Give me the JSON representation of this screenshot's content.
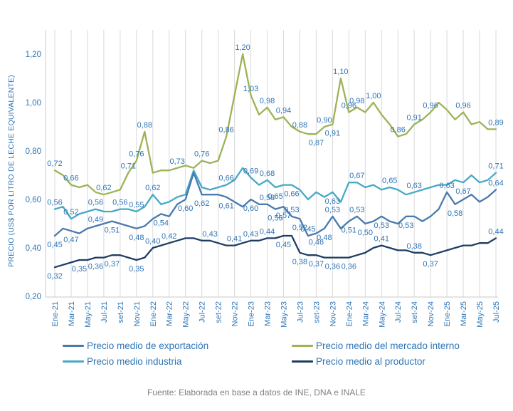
{
  "footer": {
    "source_text": "Fuente: Elaborada en base a datos de INE, DNA e INALE"
  },
  "colors": {
    "label_text": "#2e75b6",
    "axis_text": "#2e75b6",
    "gridline": "#d9d9d9",
    "axis_line": "#c9c9c9",
    "background": "#ffffff",
    "footer_text": "#808080"
  },
  "chart_data": {
    "type": "line",
    "y_axis_title": "PRECIO (US$ POR LITRO DE LECHE EQUIVALENTE)",
    "ylim": [
      0.2,
      1.2
    ],
    "grid": "vertical-only",
    "decimal_separator": ",",
    "y_ticks": [
      {
        "v": 1.2,
        "label": "1,20"
      },
      {
        "v": 1.0,
        "label": "1,00"
      },
      {
        "v": 0.8,
        "label": "0,80"
      },
      {
        "v": 0.6,
        "label": "0,60"
      },
      {
        "v": 0.4,
        "label": "0,40"
      },
      {
        "v": 0.2,
        "label": "0,20"
      }
    ],
    "x_tick_labels": [
      "Ene-21",
      "Mar-21",
      "May-21",
      "Jul-21",
      "set-21",
      "Nov-21",
      "Ene-22",
      "Mar-22",
      "May-22",
      "Jul-22",
      "set-22",
      "Nov-22",
      "Ene-23",
      "Mar-23",
      "May-23",
      "Jul-23",
      "set-23",
      "Nov-23",
      "Ene-24",
      "Mar-24",
      "May-24",
      "Jul-24",
      "set-24",
      "Nov-24",
      "Ene-25",
      "Mar-25",
      "May-25",
      "Jul-25"
    ],
    "months_total": 55,
    "series": [
      {
        "name": "Precio medio del mercado interno",
        "color": "#9cb356",
        "values": [
          0.72,
          0.7,
          0.66,
          0.65,
          0.66,
          0.63,
          0.62,
          0.63,
          0.64,
          0.71,
          0.76,
          0.88,
          0.71,
          0.72,
          0.72,
          0.73,
          0.74,
          0.73,
          0.76,
          0.75,
          0.76,
          0.86,
          1.03,
          1.2,
          1.03,
          0.95,
          0.98,
          0.93,
          0.94,
          0.9,
          0.88,
          0.87,
          0.87,
          0.9,
          0.91,
          1.1,
          0.96,
          0.98,
          0.96,
          1.0,
          0.95,
          0.91,
          0.86,
          0.87,
          0.91,
          0.93,
          0.96,
          1.0,
          0.97,
          0.93,
          0.96,
          0.91,
          0.92,
          0.89,
          0.89
        ],
        "labels": [
          [
            0,
            "0,72"
          ],
          [
            2,
            "0,66"
          ],
          [
            6,
            "0,62"
          ],
          [
            9,
            "0,71"
          ],
          [
            10,
            "0,76"
          ],
          [
            11,
            "0,88"
          ],
          [
            15,
            "0,73"
          ],
          [
            18,
            "0,76"
          ],
          [
            21,
            "0,86"
          ],
          [
            23,
            "1,20"
          ],
          [
            24,
            "1,03"
          ],
          [
            26,
            "0,98"
          ],
          [
            28,
            "0,94"
          ],
          [
            30,
            "0,88"
          ],
          [
            32,
            "0,87",
            "b"
          ],
          [
            33,
            "0,90"
          ],
          [
            34,
            "0,91",
            "b"
          ],
          [
            35,
            "1,10"
          ],
          [
            36,
            "0,96"
          ],
          [
            37,
            "0,98"
          ],
          [
            39,
            "1,00"
          ],
          [
            42,
            "0,86"
          ],
          [
            44,
            "0,91"
          ],
          [
            46,
            "0,96"
          ],
          [
            50,
            "0,96"
          ],
          [
            54,
            "0,89"
          ]
        ]
      },
      {
        "name": "Precio medio industria",
        "color": "#47a9c6",
        "values": [
          0.56,
          0.57,
          0.52,
          0.54,
          0.55,
          0.56,
          0.55,
          0.55,
          0.56,
          0.56,
          0.55,
          0.57,
          0.62,
          0.58,
          0.59,
          0.61,
          0.62,
          0.72,
          0.65,
          0.64,
          0.65,
          0.66,
          0.68,
          0.73,
          0.69,
          0.66,
          0.68,
          0.65,
          0.66,
          0.66,
          0.64,
          0.6,
          0.63,
          0.61,
          0.63,
          0.59,
          0.67,
          0.67,
          0.65,
          0.66,
          0.64,
          0.65,
          0.64,
          0.62,
          0.63,
          0.64,
          0.65,
          0.66,
          0.66,
          0.68,
          0.67,
          0.7,
          0.67,
          0.68,
          0.71
        ],
        "labels": [
          [
            0,
            "0,56"
          ],
          [
            2,
            "0,52"
          ],
          [
            5,
            "0,56"
          ],
          [
            8,
            "0,56"
          ],
          [
            10,
            "0,55"
          ],
          [
            12,
            "0,62"
          ],
          [
            21,
            "0,66"
          ],
          [
            24,
            "0,69"
          ],
          [
            26,
            "0,68"
          ],
          [
            27,
            "0,65",
            "b"
          ],
          [
            29,
            "0,66",
            "b"
          ],
          [
            34,
            "0,63",
            "b"
          ],
          [
            37,
            "0,67"
          ],
          [
            41,
            "0,65"
          ],
          [
            44,
            "0,63"
          ],
          [
            50,
            "0,67",
            "b"
          ],
          [
            54,
            "0,71"
          ]
        ]
      },
      {
        "name": "Precio medio de exportación",
        "color": "#4a7aad",
        "values": [
          0.45,
          0.48,
          0.47,
          0.46,
          0.48,
          0.49,
          0.5,
          0.51,
          0.5,
          0.49,
          0.48,
          0.49,
          0.52,
          0.54,
          0.53,
          0.58,
          0.6,
          0.71,
          0.62,
          0.62,
          0.62,
          0.61,
          0.59,
          0.57,
          0.6,
          0.58,
          0.58,
          0.56,
          0.57,
          0.53,
          0.52,
          0.45,
          0.46,
          0.48,
          0.53,
          0.48,
          0.51,
          0.53,
          0.5,
          0.51,
          0.53,
          0.51,
          0.5,
          0.53,
          0.53,
          0.51,
          0.53,
          0.56,
          0.63,
          0.58,
          0.6,
          0.62,
          0.59,
          0.61,
          0.64
        ],
        "labels": [
          [
            0,
            "0,45",
            "b"
          ],
          [
            2,
            "0,47",
            "b"
          ],
          [
            5,
            "0,49"
          ],
          [
            7,
            "0,51",
            "b"
          ],
          [
            10,
            "0,48",
            "b"
          ],
          [
            13,
            "0,54",
            "b"
          ],
          [
            16,
            "0,60",
            "b"
          ],
          [
            18,
            "0,62",
            "b"
          ],
          [
            21,
            "0,61",
            "b"
          ],
          [
            24,
            "0,60",
            "b"
          ],
          [
            26,
            "0,58"
          ],
          [
            27,
            "0,56",
            "b"
          ],
          [
            28,
            "0,57",
            "b"
          ],
          [
            29,
            "0,53"
          ],
          [
            30,
            "0,52",
            "b"
          ],
          [
            31,
            "0,45"
          ],
          [
            32,
            "0,46",
            "b"
          ],
          [
            33,
            "0,48",
            "b"
          ],
          [
            34,
            "0,53"
          ],
          [
            36,
            "0,51",
            "b"
          ],
          [
            37,
            "0,53"
          ],
          [
            38,
            "0,50",
            "b"
          ],
          [
            40,
            "0,53",
            "b"
          ],
          [
            43,
            "0,53",
            "b"
          ],
          [
            48,
            "0,63"
          ],
          [
            49,
            "0,58",
            "b"
          ],
          [
            54,
            "0,64"
          ]
        ]
      },
      {
        "name": "Precio medio al productor",
        "color": "#1f3d63",
        "values": [
          0.32,
          0.33,
          0.34,
          0.35,
          0.35,
          0.36,
          0.36,
          0.37,
          0.37,
          0.36,
          0.35,
          0.36,
          0.4,
          0.41,
          0.42,
          0.43,
          0.44,
          0.44,
          0.43,
          0.43,
          0.42,
          0.41,
          0.41,
          0.42,
          0.43,
          0.43,
          0.44,
          0.44,
          0.45,
          0.45,
          0.38,
          0.37,
          0.37,
          0.36,
          0.36,
          0.36,
          0.36,
          0.37,
          0.38,
          0.4,
          0.41,
          0.4,
          0.39,
          0.39,
          0.38,
          0.38,
          0.37,
          0.38,
          0.39,
          0.4,
          0.41,
          0.41,
          0.42,
          0.42,
          0.44
        ],
        "labels": [
          [
            0,
            "0,32",
            "b"
          ],
          [
            3,
            "0,35",
            "b"
          ],
          [
            5,
            "0,36",
            "b"
          ],
          [
            7,
            "0,37",
            "b"
          ],
          [
            10,
            "0,35",
            "b"
          ],
          [
            12,
            "0,40"
          ],
          [
            14,
            "0,42"
          ],
          [
            19,
            "0,43"
          ],
          [
            22,
            "0,41"
          ],
          [
            24,
            "0,43"
          ],
          [
            26,
            "0,44"
          ],
          [
            28,
            "0,45",
            "b"
          ],
          [
            30,
            "0,38",
            "b"
          ],
          [
            32,
            "0,37",
            "b"
          ],
          [
            34,
            "0,36",
            "b"
          ],
          [
            36,
            "0,36",
            "b"
          ],
          [
            40,
            "0,41"
          ],
          [
            44,
            "0,38"
          ],
          [
            46,
            "0,37",
            "b"
          ],
          [
            54,
            "0,44"
          ]
        ]
      }
    ],
    "legend": {
      "position": "bottom",
      "items": [
        {
          "label": "Precio medio de exportación",
          "color": "#4a7aad"
        },
        {
          "label": "Precio medio del mercado interno",
          "color": "#9cb356"
        },
        {
          "label": "Precio medio industria",
          "color": "#47a9c6"
        },
        {
          "label": "Precio medio al productor",
          "color": "#1f3d63"
        }
      ]
    }
  }
}
